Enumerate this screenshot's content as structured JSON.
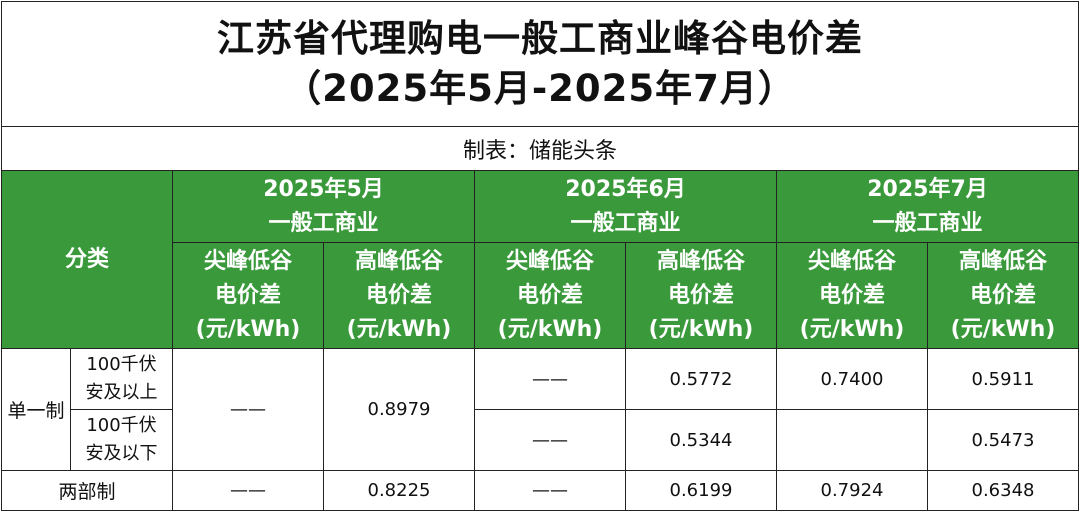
{
  "title": {
    "line1": "江苏省代理购电一般工商业峰谷电价差",
    "line2": "（2025年5月-2025年7月）"
  },
  "maker": "制表：储能头条",
  "header": {
    "category": "分类",
    "months": [
      {
        "month": "2025年5月",
        "type": "一般工商业"
      },
      {
        "month": "2025年6月",
        "type": "一般工商业"
      },
      {
        "month": "2025年7月",
        "type": "一般工商业"
      }
    ],
    "col_peak": {
      "l1": "尖峰低谷",
      "l2": "电价差",
      "l3": "(元/kWh)"
    },
    "col_high": {
      "l1": "高峰低谷",
      "l2": "电价差",
      "l3": "(元/kWh)"
    }
  },
  "rows": {
    "single_label": "单一制",
    "sub_above": {
      "l1": "100千伏",
      "l2": "安及以上"
    },
    "sub_below": {
      "l1": "100千伏",
      "l2": "安及以下"
    },
    "two_part_label": "两部制"
  },
  "values": {
    "may_peak_single": "——",
    "may_high_single": "0.8979",
    "jun_peak_above": "——",
    "jun_high_above": "0.5772",
    "jul_peak_single": "0.7400",
    "jul_high_above": "0.5911",
    "jun_peak_below": "——",
    "jun_high_below": "0.5344",
    "jul_high_below": "0.5473",
    "may_peak_two": "——",
    "may_high_two": "0.8225",
    "jun_peak_two": "——",
    "jun_high_two": "0.6199",
    "jul_peak_two": "0.7924",
    "jul_high_two": "0.6348"
  },
  "colors": {
    "header_green": "#3a9a3b",
    "border": "#222222"
  }
}
